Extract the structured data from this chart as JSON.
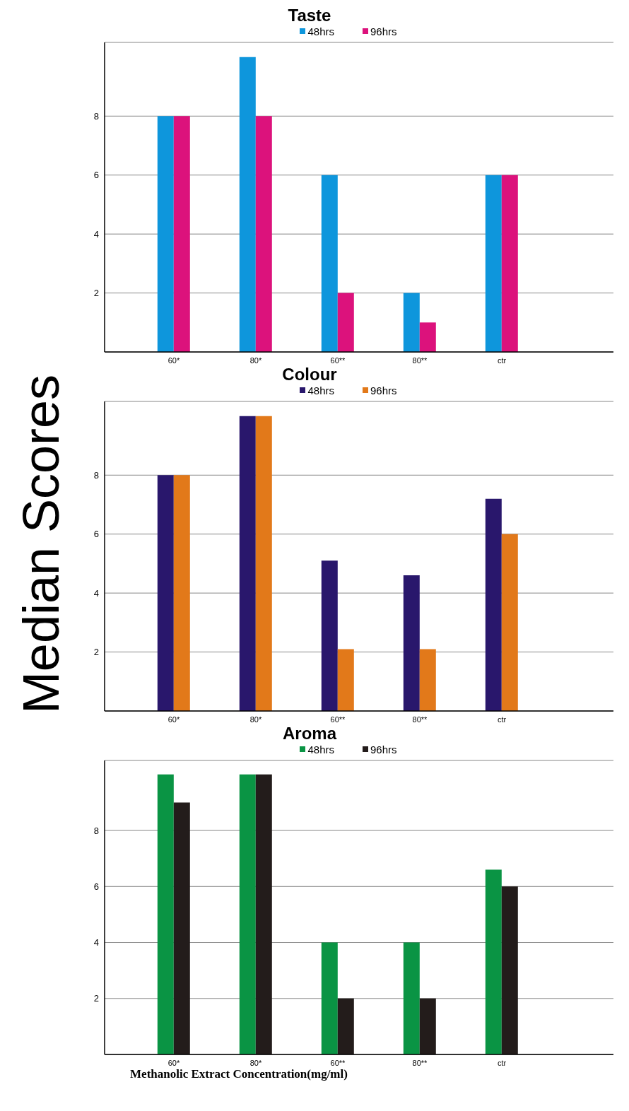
{
  "chart_data": [
    {
      "type": "bar",
      "title": "Taste",
      "categories": [
        "60*",
        "80*",
        "60**",
        "80**",
        "ctr"
      ],
      "series": [
        {
          "name": "48hrs",
          "color": "#0e96dc",
          "values": [
            8,
            10,
            6,
            2,
            6
          ]
        },
        {
          "name": "96hrs",
          "color": "#dc127c",
          "values": [
            8,
            8,
            2,
            1,
            6
          ]
        }
      ],
      "ylim": [
        0,
        10.5
      ],
      "yticks": [
        2,
        4,
        6,
        8
      ],
      "grid": "y",
      "legend": "top"
    },
    {
      "type": "bar",
      "title": "Colour",
      "ylabel": "Median Scores",
      "categories": [
        "60*",
        "80*",
        "60**",
        "80**",
        "ctr"
      ],
      "series": [
        {
          "name": "48hrs",
          "color": "#29176c",
          "values": [
            8,
            10,
            5.1,
            4.6,
            7.2
          ]
        },
        {
          "name": "96hrs",
          "color": "#e2791a",
          "values": [
            8,
            10,
            2.1,
            2.1,
            6
          ]
        }
      ],
      "ylim": [
        0,
        10.5
      ],
      "yticks": [
        2,
        4,
        6,
        8
      ],
      "grid": "y",
      "legend": "top"
    },
    {
      "type": "bar",
      "title": "Aroma",
      "xlabel": "Methanolic Extract Concentration(mg/ml)",
      "categories": [
        "60*",
        "80*",
        "60**",
        "80**",
        "ctr"
      ],
      "series": [
        {
          "name": "48hrs",
          "color": "#0a9444",
          "values": [
            10,
            10,
            4,
            4,
            6.6
          ]
        },
        {
          "name": "96hrs",
          "color": "#231c1b",
          "values": [
            9,
            10,
            2,
            2,
            6
          ]
        }
      ],
      "ylim": [
        0,
        10.5
      ],
      "yticks": [
        2,
        4,
        6,
        8
      ],
      "grid": "y",
      "legend": "top"
    }
  ]
}
